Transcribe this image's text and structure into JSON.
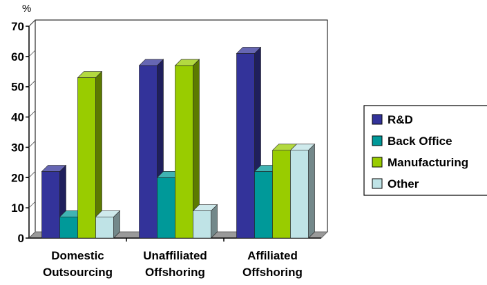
{
  "chart_data": {
    "type": "bar",
    "title": "",
    "ylabel": "%",
    "xlabel": "",
    "ylim": [
      0,
      70
    ],
    "yticks": [
      0,
      10,
      20,
      30,
      40,
      50,
      60,
      70
    ],
    "categories": [
      "Domestic Outsourcing",
      "Unaffiliated Offshoring",
      "Affiliated Offshoring"
    ],
    "category_lines": [
      [
        "Domestic",
        "Outsourcing"
      ],
      [
        "Unaffiliated",
        "Offshoring"
      ],
      [
        "Affiliated",
        "Offshoring"
      ]
    ],
    "series": [
      {
        "name": "R&D",
        "values": [
          22,
          57,
          61
        ],
        "color": "#33339a"
      },
      {
        "name": "Back Office",
        "values": [
          7,
          20,
          22
        ],
        "color": "#009999"
      },
      {
        "name": "Manufacturing",
        "values": [
          53,
          57,
          29
        ],
        "color": "#99cc00"
      },
      {
        "name": "Other",
        "values": [
          7,
          9,
          29
        ],
        "color": "#bfe3e6"
      }
    ],
    "legend_position": "right",
    "grid": false,
    "style": "3d"
  }
}
